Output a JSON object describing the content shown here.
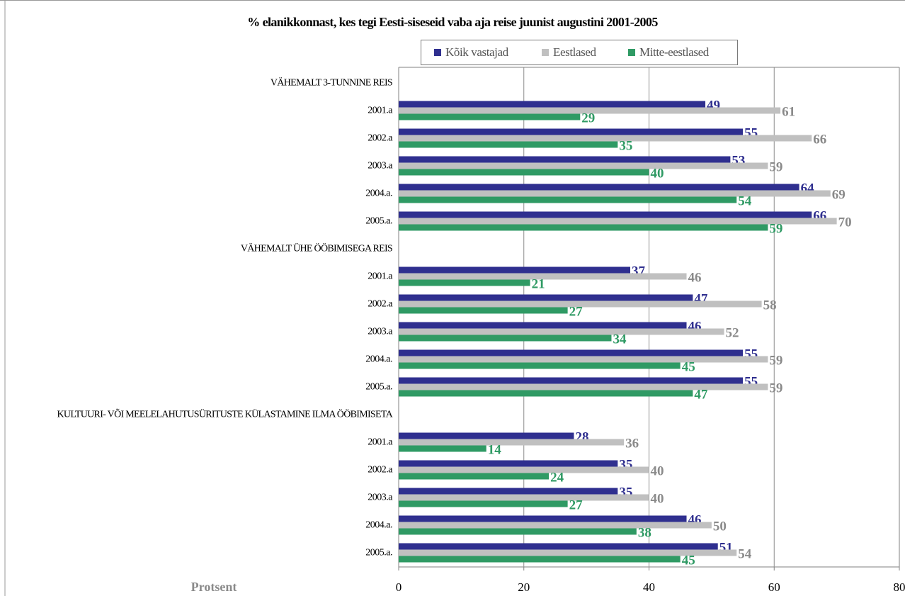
{
  "chart_data": {
    "type": "bar",
    "orientation": "horizontal",
    "title": "% elanikkonnast, kes tegi Eesti-siseseid vaba aja reise juunist augustini 2001-2005",
    "xlabel": "Protsent",
    "xlim": [
      0,
      80
    ],
    "x_ticks": [
      "0",
      "20",
      "40",
      "60",
      "80"
    ],
    "grid": "vertical",
    "legend_position": "top",
    "colors": [
      "#2f2f8f",
      "#c0c0c0",
      "#2f9a64"
    ],
    "value_label_colors": [
      "#2f2f8f",
      "#8a8a8a",
      "#2f9a64"
    ],
    "series_names": [
      "Kõik vastajad",
      "Eestlased",
      "Mitte-eestlased"
    ],
    "groups": [
      {
        "name": "VÄHEMALT 3-TUNNINE REIS",
        "categories": [
          "2001.a",
          "2002.a",
          "2003.a",
          "2004.a.",
          "2005.a."
        ],
        "series": [
          {
            "name": "Kõik vastajad",
            "values": [
              49,
              55,
              53,
              64,
              66
            ]
          },
          {
            "name": "Eestlased",
            "values": [
              61,
              66,
              59,
              69,
              70
            ]
          },
          {
            "name": "Mitte-eestlased",
            "values": [
              29,
              35,
              40,
              54,
              59
            ]
          }
        ]
      },
      {
        "name": "VÄHEMALT ÜHE ÖÖBIMISEGA REIS",
        "categories": [
          "2001.a",
          "2002.a",
          "2003.a",
          "2004.a.",
          "2005.a."
        ],
        "series": [
          {
            "name": "Kõik vastajad",
            "values": [
              37,
              47,
              46,
              55,
              55
            ]
          },
          {
            "name": "Eestlased",
            "values": [
              46,
              58,
              52,
              59,
              59
            ]
          },
          {
            "name": "Mitte-eestlased",
            "values": [
              21,
              27,
              34,
              45,
              47
            ]
          }
        ]
      },
      {
        "name": "KULTUURI- VÕI MEELELAHUTUSÜRITUSTE KÜLASTAMINE ILMA ÖÖBIMISETA",
        "categories": [
          "2001.a",
          "2002.a",
          "2003.a",
          "2004.a.",
          "2005.a."
        ],
        "series": [
          {
            "name": "Kõik vastajad",
            "values": [
              28,
              35,
              35,
              46,
              51
            ]
          },
          {
            "name": "Eestlased",
            "values": [
              36,
              40,
              40,
              50,
              54
            ]
          },
          {
            "name": "Mitte-eestlased",
            "values": [
              14,
              24,
              27,
              38,
              45
            ]
          }
        ]
      }
    ]
  }
}
